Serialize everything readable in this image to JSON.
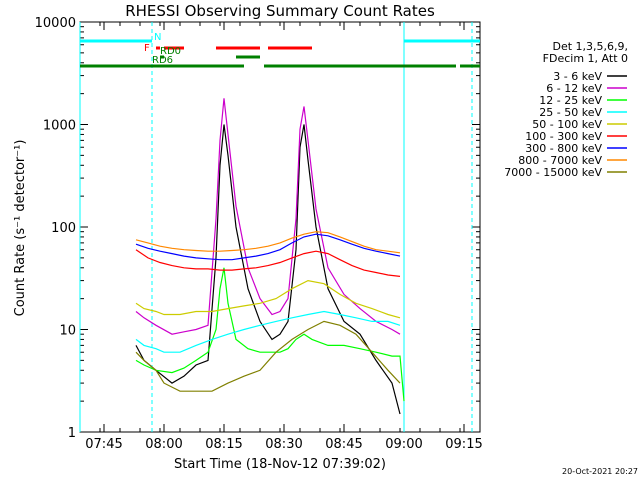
{
  "chart_data": {
    "type": "line",
    "title": "RHESSI Observing Summary Count Rates",
    "xlabel": "Start Time (18-Nov-12 07:39:02)",
    "ylabel": "Count Rate (s⁻¹ detector⁻¹)",
    "yscale": "log",
    "ylim": [
      1,
      10000
    ],
    "xlim": [
      "07:39",
      "09:19"
    ],
    "x_ticks": [
      "07:45",
      "08:00",
      "08:15",
      "08:30",
      "08:45",
      "09:00",
      "09:15"
    ],
    "y_ticks": [
      "1",
      "10",
      "100",
      "1000",
      "10000"
    ],
    "grid": false,
    "legend_position": "right",
    "legend_header": [
      "Det 1,3,5,6,9,",
      "FDecim 1, Att 0"
    ],
    "timestamp": "20-Oct-2021 20:27",
    "background": "#ffffff",
    "series": [
      {
        "name": "3 - 6 keV",
        "color": "#000000",
        "x": [
          "07:53",
          "07:55",
          "07:58",
          "08:02",
          "08:05",
          "08:08",
          "08:11",
          "08:13",
          "08:14",
          "08:15",
          "08:16",
          "08:18",
          "08:21",
          "08:24",
          "08:27",
          "08:29",
          "08:31",
          "08:33",
          "08:34",
          "08:35",
          "08:36",
          "08:38",
          "08:41",
          "08:45",
          "08:49",
          "08:53",
          "08:57",
          "08:59"
        ],
        "y": [
          7,
          5,
          4,
          3,
          3.5,
          4.5,
          5,
          50,
          400,
          1000,
          500,
          100,
          25,
          12,
          8,
          9,
          12,
          60,
          600,
          1000,
          450,
          100,
          25,
          12,
          9,
          5,
          3,
          1.5
        ]
      },
      {
        "name": "6 - 12 keV",
        "color": "#cc00cc",
        "x": [
          "07:53",
          "07:55",
          "07:58",
          "08:02",
          "08:05",
          "08:08",
          "08:11",
          "08:13",
          "08:14",
          "08:15",
          "08:16",
          "08:18",
          "08:21",
          "08:24",
          "08:27",
          "08:29",
          "08:31",
          "08:33",
          "08:34",
          "08:35",
          "08:36",
          "08:38",
          "08:41",
          "08:45",
          "08:49",
          "08:53",
          "08:57",
          "08:59"
        ],
        "y": [
          15,
          13,
          11,
          9,
          9.5,
          10,
          11,
          120,
          700,
          1800,
          800,
          160,
          40,
          20,
          14,
          15,
          20,
          120,
          900,
          1500,
          700,
          150,
          40,
          22,
          16,
          12,
          10,
          9
        ]
      },
      {
        "name": "12 - 25 keV",
        "color": "#00ff00",
        "x": [
          "07:53",
          "07:55",
          "07:58",
          "08:02",
          "08:05",
          "08:08",
          "08:11",
          "08:13",
          "08:14",
          "08:15",
          "08:16",
          "08:18",
          "08:21",
          "08:24",
          "08:27",
          "08:29",
          "08:31",
          "08:33",
          "08:35",
          "08:37",
          "08:41",
          "08:45",
          "08:49",
          "08:53",
          "08:57",
          "08:59",
          "09:00"
        ],
        "y": [
          5,
          4.5,
          4,
          3.8,
          4.2,
          5,
          6,
          10,
          25,
          40,
          18,
          8,
          6.5,
          6,
          6,
          6,
          6.5,
          8,
          9,
          8,
          7,
          7,
          6.5,
          6,
          5.5,
          5.5,
          2
        ]
      },
      {
        "name": "25 - 50 keV",
        "color": "#00ffff",
        "x": [
          "07:53",
          "07:55",
          "07:58",
          "08:00",
          "08:04",
          "08:08",
          "08:12",
          "08:16",
          "08:20",
          "08:24",
          "08:28",
          "08:32",
          "08:36",
          "08:40",
          "08:44",
          "08:48",
          "08:52",
          "08:56",
          "08:59"
        ],
        "y": [
          8,
          7,
          6.5,
          6,
          6,
          7,
          8,
          9,
          10,
          11,
          12,
          13,
          14,
          15,
          14,
          13,
          12,
          12,
          11
        ]
      },
      {
        "name": "50 - 100 keV",
        "color": "#cccc00",
        "x": [
          "07:53",
          "07:55",
          "07:58",
          "08:00",
          "08:04",
          "08:08",
          "08:12",
          "08:16",
          "08:20",
          "08:24",
          "08:28",
          "08:32",
          "08:36",
          "08:40",
          "08:44",
          "08:48",
          "08:52",
          "08:56",
          "08:59"
        ],
        "y": [
          18,
          16,
          15,
          14,
          14,
          15,
          15,
          16,
          17,
          18,
          20,
          25,
          30,
          28,
          22,
          18,
          16,
          14,
          13
        ]
      },
      {
        "name": "100 - 300 keV",
        "color": "#ff0000",
        "x": [
          "07:53",
          "07:56",
          "07:59",
          "08:02",
          "08:05",
          "08:08",
          "08:11",
          "08:14",
          "08:17",
          "08:20",
          "08:23",
          "08:26",
          "08:29",
          "08:32",
          "08:35",
          "08:38",
          "08:41",
          "08:44",
          "08:47",
          "08:50",
          "08:53",
          "08:56",
          "08:59"
        ],
        "y": [
          60,
          50,
          45,
          42,
          40,
          39,
          39,
          38,
          38,
          39,
          40,
          42,
          45,
          50,
          55,
          58,
          55,
          48,
          42,
          38,
          36,
          34,
          33
        ]
      },
      {
        "name": "300 - 800 keV",
        "color": "#0000ff",
        "x": [
          "07:53",
          "07:56",
          "07:59",
          "08:02",
          "08:05",
          "08:08",
          "08:11",
          "08:14",
          "08:17",
          "08:20",
          "08:23",
          "08:26",
          "08:29",
          "08:32",
          "08:35",
          "08:38",
          "08:41",
          "08:44",
          "08:47",
          "08:50",
          "08:53",
          "08:56",
          "08:59"
        ],
        "y": [
          68,
          62,
          58,
          55,
          52,
          50,
          49,
          48,
          48,
          50,
          52,
          55,
          60,
          70,
          80,
          85,
          82,
          75,
          68,
          62,
          58,
          55,
          52
        ]
      },
      {
        "name": "800 - 7000 keV",
        "color": "#ff8800",
        "x": [
          "07:53",
          "07:56",
          "07:59",
          "08:02",
          "08:05",
          "08:08",
          "08:11",
          "08:14",
          "08:17",
          "08:20",
          "08:23",
          "08:26",
          "08:29",
          "08:32",
          "08:35",
          "08:38",
          "08:41",
          "08:44",
          "08:47",
          "08:50",
          "08:53",
          "08:56",
          "08:59"
        ],
        "y": [
          75,
          70,
          65,
          62,
          60,
          59,
          58,
          58,
          59,
          60,
          62,
          65,
          70,
          78,
          85,
          90,
          88,
          80,
          72,
          65,
          60,
          58,
          56
        ]
      },
      {
        "name": "7000 - 15000 keV",
        "color": "#808000",
        "x": [
          "07:53",
          "07:55",
          "07:58",
          "08:00",
          "08:04",
          "08:08",
          "08:12",
          "08:16",
          "08:20",
          "08:24",
          "08:28",
          "08:32",
          "08:36",
          "08:40",
          "08:44",
          "08:48",
          "08:52",
          "08:56",
          "08:59"
        ],
        "y": [
          6,
          5,
          4,
          3,
          2.5,
          2.5,
          2.5,
          3,
          3.5,
          4,
          6,
          8,
          10,
          12,
          11,
          9,
          6,
          4,
          3
        ]
      }
    ],
    "annotations": [
      {
        "label": "N",
        "color": "#00ffff",
        "segments": [
          [
            "07:39",
            "07:57"
          ],
          [
            "09:00",
            "09:19"
          ]
        ]
      },
      {
        "label": "F",
        "color": "#ff0000",
        "segments": [
          [
            "07:58",
            "07:59"
          ],
          [
            "08:00",
            "08:05"
          ],
          [
            "08:13",
            "08:24"
          ],
          [
            "08:26",
            "08:37"
          ]
        ]
      },
      {
        "label": "RD0",
        "color": "#008000",
        "segments": [
          [
            "07:59",
            "08:00"
          ],
          [
            "08:18",
            "08:24"
          ]
        ]
      },
      {
        "label": "RD6",
        "color": "#008000",
        "segments": [
          [
            "07:39",
            "08:20"
          ],
          [
            "08:25",
            "08:49"
          ],
          [
            "08:49",
            "09:13"
          ],
          [
            "09:14",
            "09:19"
          ]
        ]
      }
    ],
    "event_lines": [
      {
        "color": "#00ffff",
        "x": "07:39",
        "style": "solid"
      },
      {
        "color": "#00ffff",
        "x": "07:57",
        "style": "dashed"
      },
      {
        "color": "#00ffff",
        "x": "09:00",
        "style": "solid"
      },
      {
        "color": "#00ffff",
        "x": "09:17",
        "style": "dashed"
      }
    ]
  }
}
